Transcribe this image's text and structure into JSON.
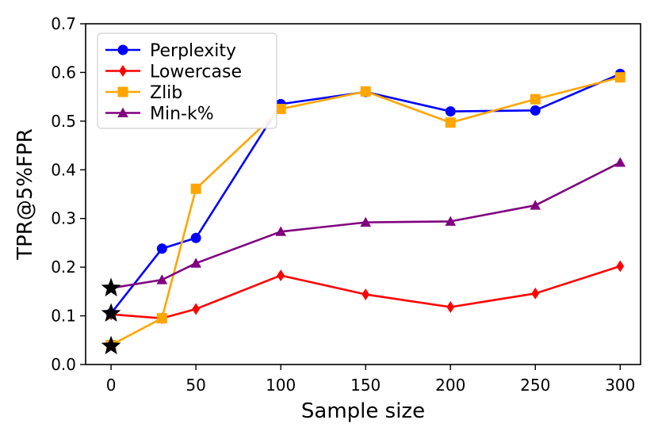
{
  "chart_data": {
    "type": "line",
    "title": "",
    "xlabel": "Sample size",
    "ylabel": "TPR@5%FPR",
    "xlim": [
      -15,
      312
    ],
    "ylim": [
      0.0,
      0.7
    ],
    "xticks": [
      0,
      50,
      100,
      150,
      200,
      250,
      300
    ],
    "yticks": [
      0.0,
      0.1,
      0.2,
      0.3,
      0.4,
      0.5,
      0.6,
      0.7
    ],
    "x": [
      0,
      30,
      50,
      100,
      150,
      200,
      250,
      300
    ],
    "legend_position": "upper-left",
    "series": [
      {
        "name": "Perplexity",
        "color": "#0000ff",
        "marker": "circle",
        "values": [
          0.105,
          0.238,
          0.26,
          0.535,
          0.56,
          0.52,
          0.522,
          0.597
        ]
      },
      {
        "name": "Lowercase",
        "color": "#ff0000",
        "marker": "diamond",
        "values": [
          0.103,
          0.095,
          0.114,
          0.183,
          0.144,
          0.118,
          0.146,
          0.202
        ]
      },
      {
        "name": "Zlib",
        "color": "#ffa500",
        "marker": "square",
        "values": [
          0.04,
          0.095,
          0.361,
          0.525,
          0.561,
          0.497,
          0.545,
          0.59
        ]
      },
      {
        "name": "Min-k%",
        "color": "#800080",
        "marker": "triangle",
        "values": [
          0.157,
          0.174,
          0.208,
          0.273,
          0.292,
          0.294,
          0.327,
          0.415
        ]
      }
    ],
    "annotations": {
      "marker": "star",
      "color": "#000000",
      "points": [
        {
          "x": 0,
          "y": 0.157
        },
        {
          "x": 0,
          "y": 0.105
        },
        {
          "x": 0,
          "y": 0.038
        }
      ]
    }
  }
}
